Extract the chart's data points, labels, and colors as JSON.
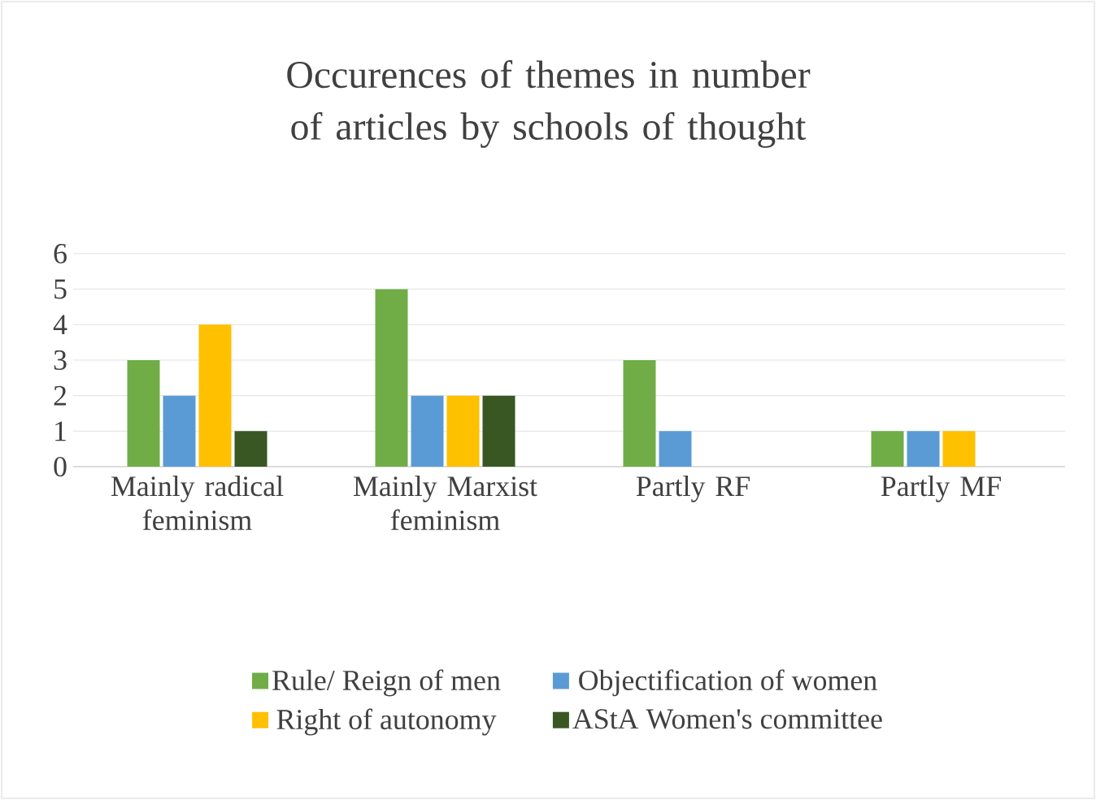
{
  "chart_data": {
    "type": "bar",
    "title": "Occurences of themes in number of articles by schools of thought",
    "categories": [
      "Mainly radical feminism",
      "Mainly Marxist feminism",
      "Partly RF",
      "Partly MF"
    ],
    "series": [
      {
        "name": "Rule/ Reign of men",
        "color": "#70ad47",
        "values": [
          3,
          5,
          3,
          1
        ]
      },
      {
        "name": "Objectification of women",
        "color": "#5b9bd5",
        "values": [
          2,
          2,
          1,
          1
        ]
      },
      {
        "name": "Right of autonomy",
        "color": "#ffc000",
        "values": [
          4,
          2,
          0,
          1
        ]
      },
      {
        "name": "AStA Women's committee",
        "color": "#385723",
        "values": [
          1,
          2,
          0,
          0
        ]
      }
    ],
    "ylim": [
      0,
      6
    ],
    "yticks": [
      0,
      1,
      2,
      3,
      4,
      5,
      6
    ],
    "grid": "y",
    "legend": "bottom"
  }
}
